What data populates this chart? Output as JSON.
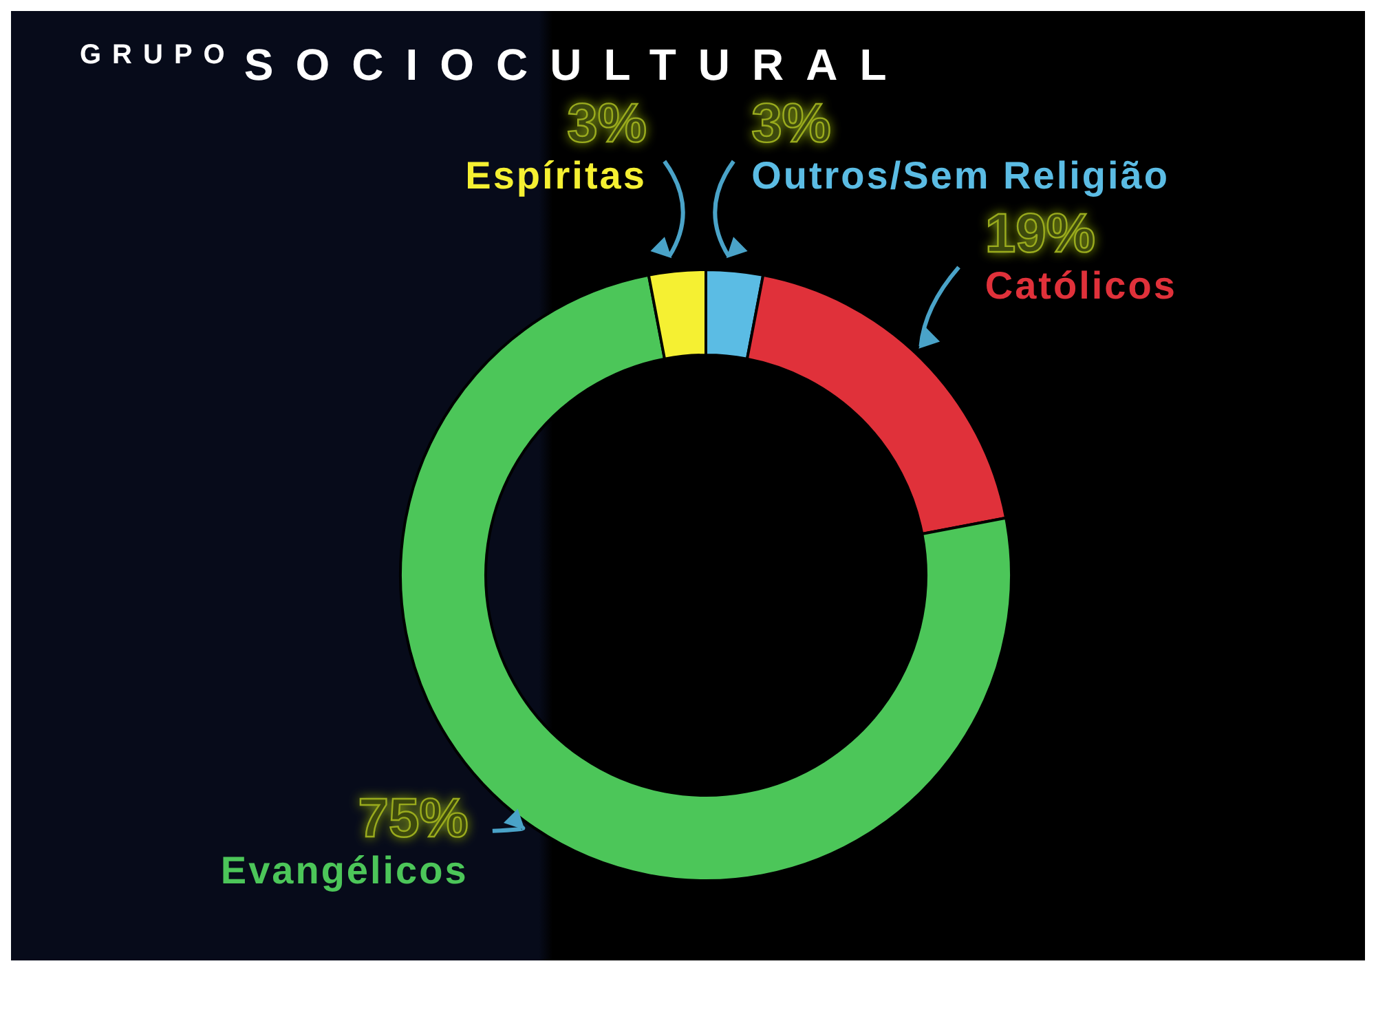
{
  "chart_data": {
    "type": "donut",
    "title": "GRUPO SOCIOCULTURAL",
    "categories": [
      "Outros/Sem Religião",
      "Católicos",
      "Evangélicos",
      "Espíritas"
    ],
    "values": [
      3,
      19,
      75,
      3
    ],
    "value_labels": [
      "3%",
      "19%",
      "75%",
      "3%"
    ],
    "colors": [
      "#5bbce4",
      "#e0313a",
      "#4cc659",
      "#f5f032"
    ]
  }
}
